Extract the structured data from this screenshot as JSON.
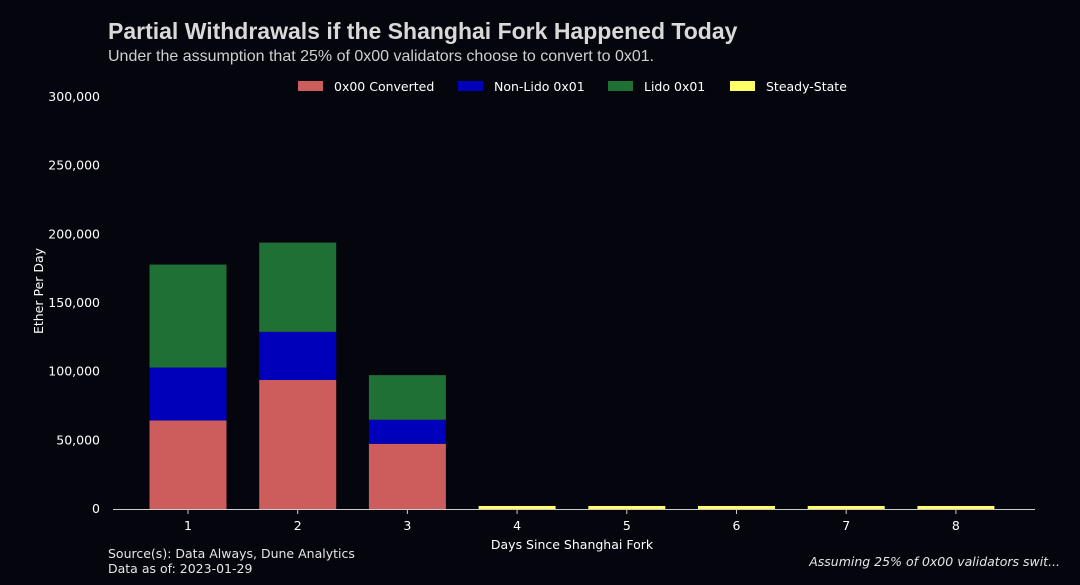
{
  "title": "Partial Withdrawals if the Shanghai Fork Happened Today",
  "subtitle": "Under the assumption that 25% of 0x00 validators choose to convert to 0x01.",
  "source_line": "Source(s): Data Always, Dune Analytics",
  "date_line": "Data as of: 2023-01-29",
  "footnote": "Assuming 25% of 0x00 validators swit...",
  "chart_data": {
    "type": "bar",
    "stacked": true,
    "xlabel": "Days Since Shanghai Fork",
    "ylabel": "Ether Per Day",
    "categories": [
      "1",
      "2",
      "3",
      "4",
      "5",
      "6",
      "7",
      "8"
    ],
    "ylim": [
      0,
      300000
    ],
    "yticks": [
      0,
      50000,
      100000,
      150000,
      200000,
      250000,
      300000
    ],
    "ytick_labels": [
      "0",
      "50,000",
      "100,000",
      "150,000",
      "200,000",
      "250,000",
      "300,000"
    ],
    "legend_position": "top",
    "grid": false,
    "series": [
      {
        "name": "0x00 Converted",
        "color": "#cd5c5c",
        "values": [
          64500,
          94000,
          47500,
          0,
          0,
          0,
          0,
          0
        ]
      },
      {
        "name": "Non-Lido 0x01",
        "color": "#0000bb",
        "values": [
          38500,
          35000,
          17500,
          0,
          0,
          0,
          0,
          0
        ]
      },
      {
        "name": "Lido 0x01",
        "color": "#1f7035",
        "values": [
          75000,
          65000,
          32500,
          0,
          0,
          0,
          0,
          0
        ]
      },
      {
        "name": "Steady-State",
        "color": "#ffff66",
        "values": [
          0,
          0,
          0,
          2200,
          2200,
          2200,
          2200,
          2200
        ]
      }
    ]
  }
}
